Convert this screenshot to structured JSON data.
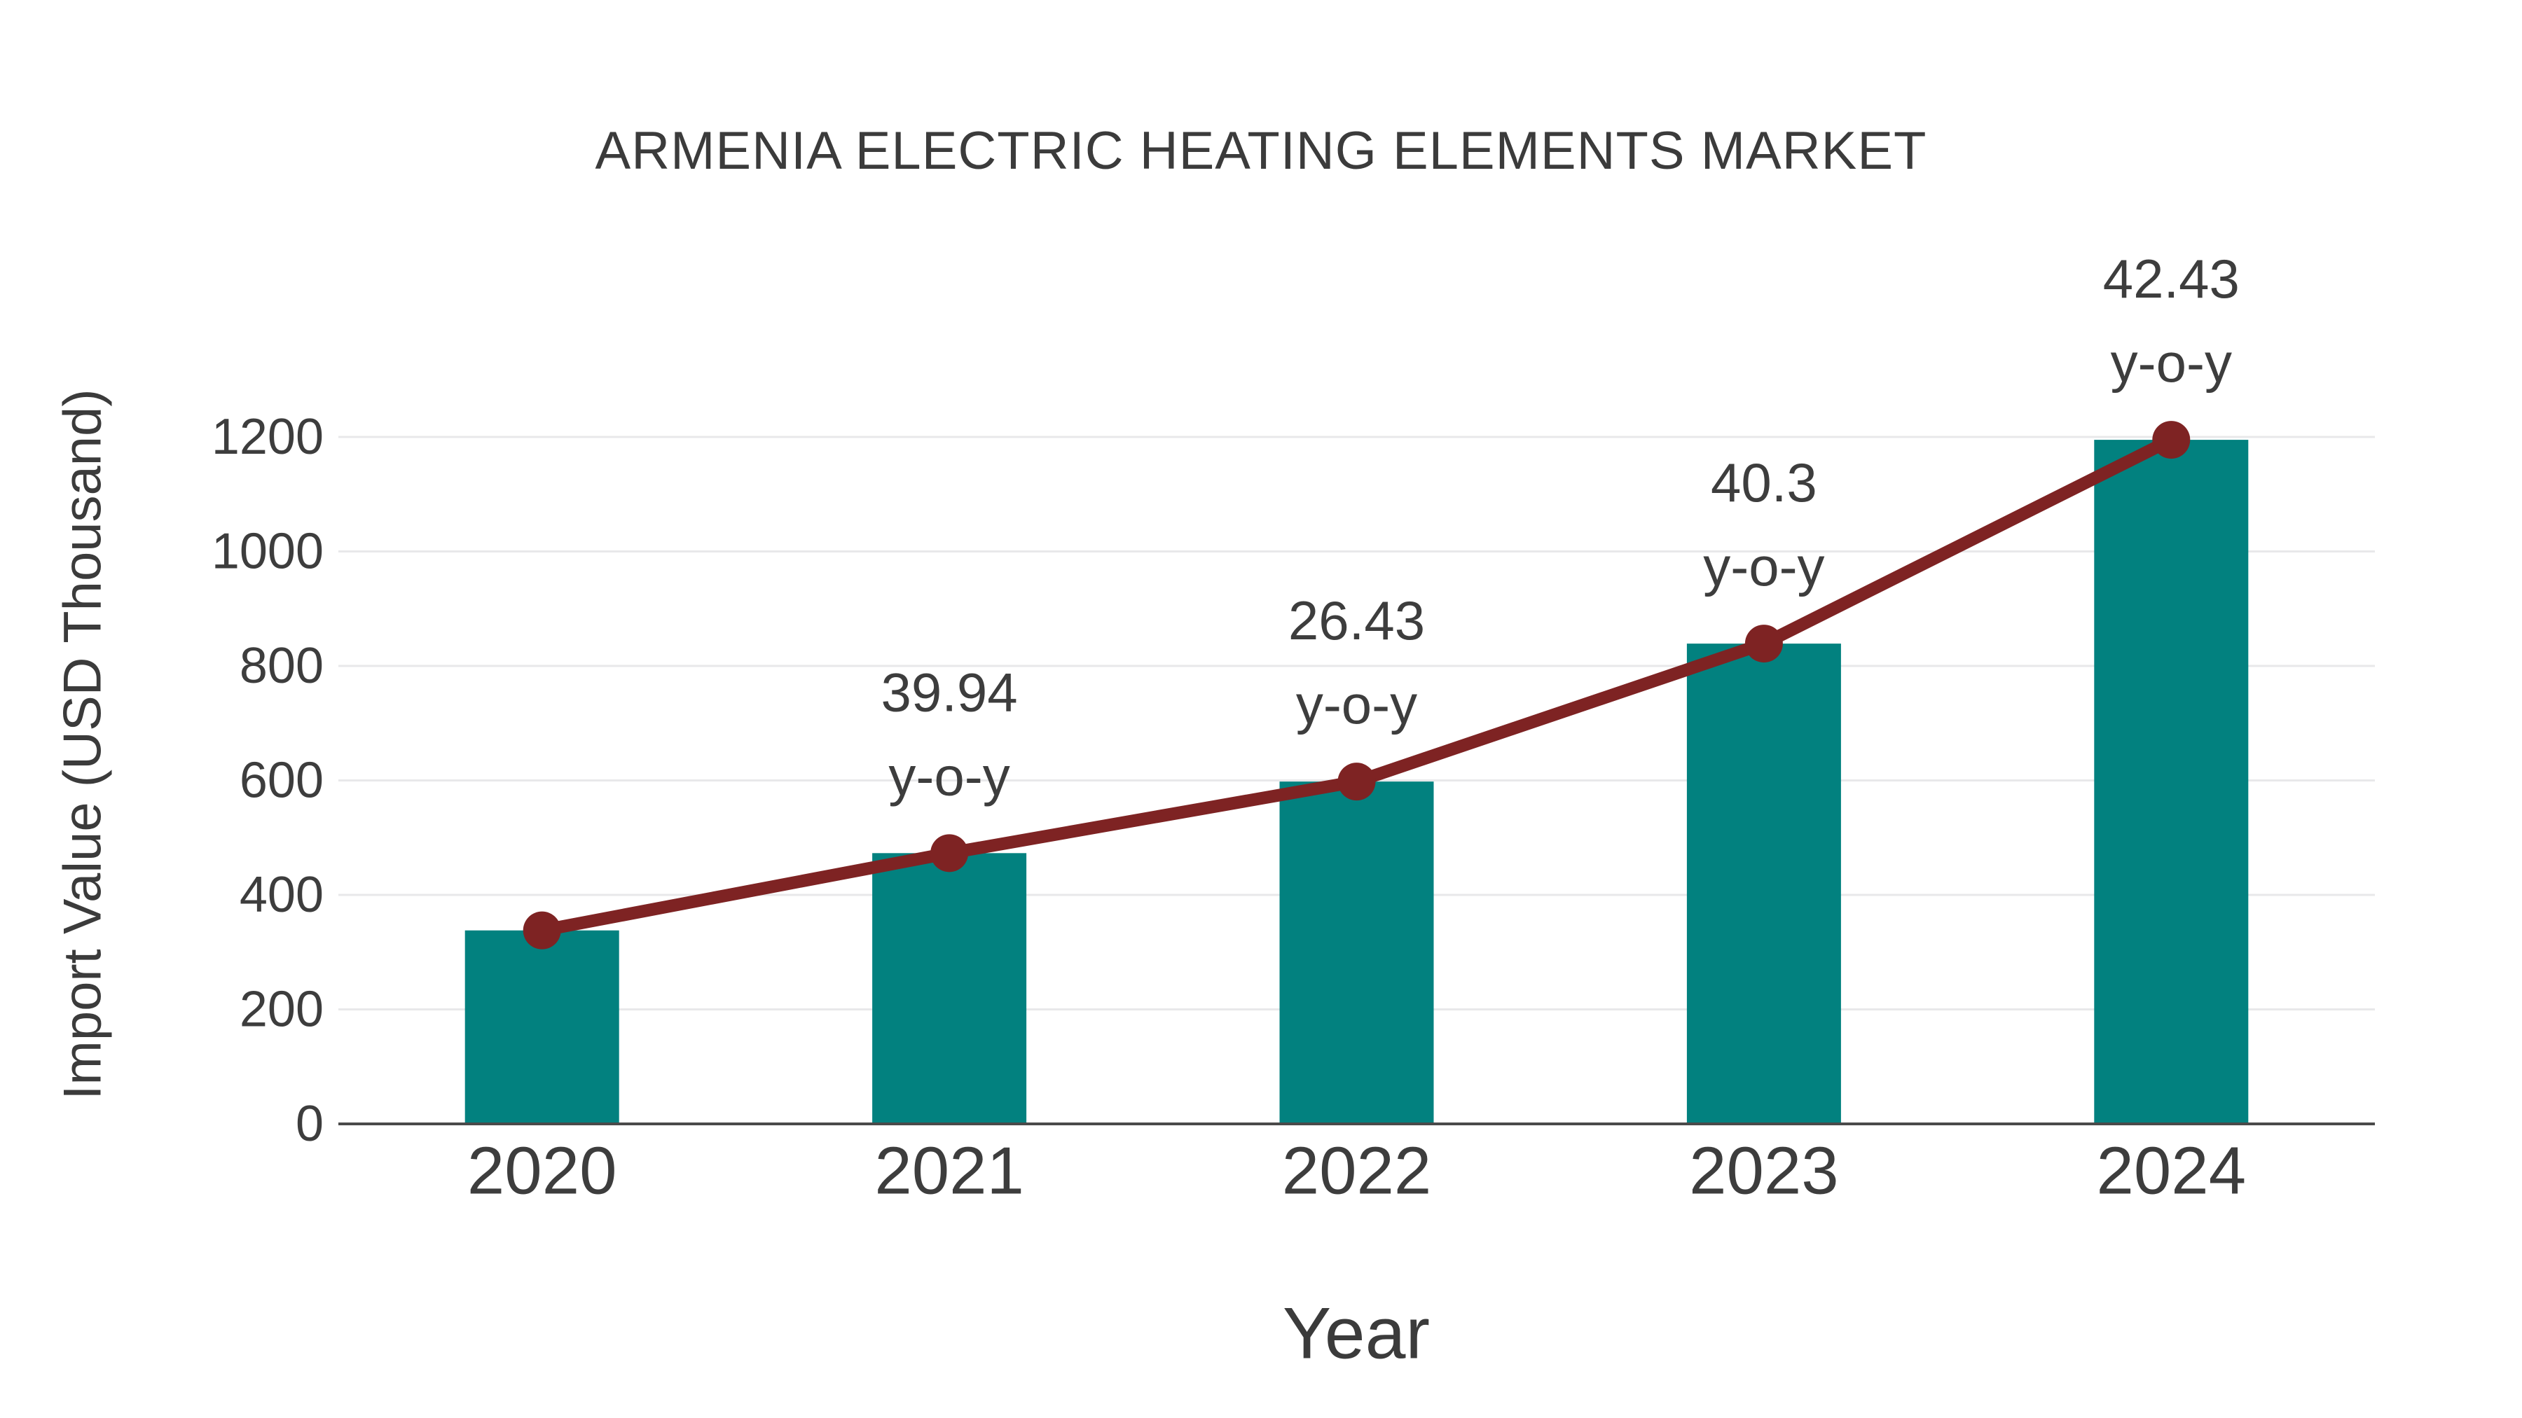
{
  "title": "ARMENIA ELECTRIC HEATING ELEMENTS MARKET",
  "chart_data": {
    "type": "bar",
    "title": "ARMENIA ELECTRIC HEATING ELEMENTS MARKET",
    "xlabel": "Year",
    "ylabel": "Import Value (USD Thousand)",
    "categories": [
      "2020",
      "2021",
      "2022",
      "2023",
      "2024"
    ],
    "series": [
      {
        "name": "Import Value (USD Thousand)",
        "type": "bar",
        "values": [
          338,
          473,
          598,
          839,
          1195
        ]
      },
      {
        "name": "y-o-y growth line",
        "type": "line",
        "values": [
          338,
          473,
          598,
          839,
          1195
        ]
      }
    ],
    "annotations": [
      {
        "category": "2021",
        "value_label": "39.94",
        "suffix_label": "y-o-y"
      },
      {
        "category": "2022",
        "value_label": "26.43",
        "suffix_label": "y-o-y"
      },
      {
        "category": "2023",
        "value_label": "40.3",
        "suffix_label": "y-o-y"
      },
      {
        "category": "2024",
        "value_label": "42.43",
        "suffix_label": "y-o-y"
      }
    ],
    "yticks": [
      "0",
      "200",
      "400",
      "600",
      "800",
      "1000",
      "1200"
    ],
    "ytick_values": [
      0,
      200,
      400,
      600,
      800,
      1000,
      1200
    ],
    "ylim": [
      0,
      1200
    ],
    "grid": "horizontal",
    "legend_position": "none"
  },
  "colors": {
    "bar_fill": "#02817f",
    "line_stroke": "#7e2323",
    "marker_fill": "#7e2323",
    "gridline": "#e8e8ea",
    "axis_line": "#4a4a4a",
    "text": "#3d3d3d",
    "background": "#ffffff"
  }
}
